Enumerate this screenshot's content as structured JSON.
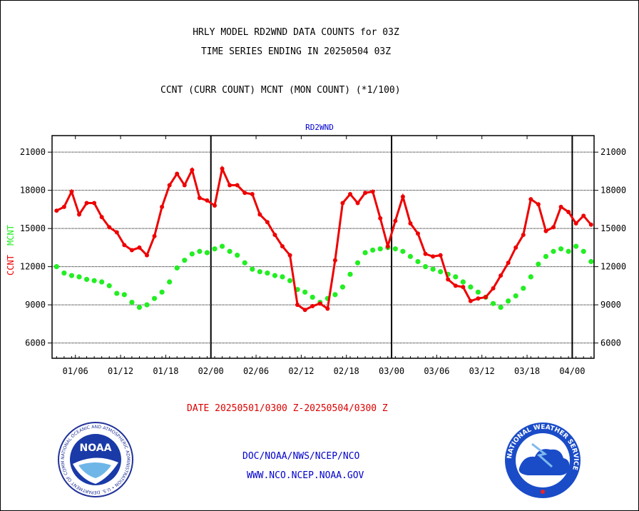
{
  "header": {
    "title_line1": "HRLY MODEL RD2WND DATA COUNTS for 03Z",
    "title_line2": "TIME SERIES ENDING IN 20250504 03Z",
    "subtitle": "CCNT (CURR COUNT) MCNT (MON COUNT) (*1/100)"
  },
  "footer": {
    "date_range": "DATE 20250501/0300 Z-20250504/0300 Z",
    "link_doc": "DOC/NOAA/NWS/NCEP/NCO",
    "link_www": "WWW.NCO.NCEP.NOAA.GOV"
  },
  "logos": {
    "noaa_text": "NOAA",
    "noaa_ring": "NATIONAL OCEANIC AND ATMOSPHERIC ADMINISTRATION • U.S. DEPARTMENT OF COMMERCE",
    "nws_ring": "NATIONAL WEATHER SERVICE"
  },
  "colors": {
    "ccnt": "#ee0000",
    "mcnt": "#22ee22",
    "label_blue": "#0000cc",
    "grid": "#000000"
  },
  "chart_data": {
    "type": "line",
    "title": "RD2WND",
    "ylabel_series": [
      "CCNT",
      "MCNT"
    ],
    "ylim": [
      4800,
      22300
    ],
    "yticks": [
      6000,
      9000,
      12000,
      15000,
      18000,
      21000
    ],
    "ytick_labels": [
      "6000",
      "9000",
      "12000",
      "15000",
      "18000",
      "21000"
    ],
    "xlim": [
      -0.6,
      71.4
    ],
    "xticks": [
      2.5,
      8.5,
      14.5,
      20.5,
      26.5,
      32.5,
      38.5,
      44.5,
      50.5,
      56.5,
      62.5,
      68.5
    ],
    "xtick_labels": [
      "01/06",
      "01/12",
      "01/18",
      "02/00",
      "02/06",
      "02/12",
      "02/18",
      "03/00",
      "03/06",
      "03/12",
      "03/18",
      "04/00"
    ],
    "day_boundaries": [
      20.5,
      44.5,
      68.5
    ],
    "grid": true,
    "series": [
      {
        "name": "CCNT",
        "values": [
          16400,
          16700,
          17900,
          16100,
          17000,
          17000,
          15900,
          15100,
          14700,
          13700,
          13300,
          13500,
          12900,
          14400,
          16700,
          18400,
          19300,
          18400,
          19600,
          17400,
          17200,
          16800,
          19700,
          18400,
          18400,
          17800,
          17700,
          16100,
          15500,
          14500,
          13600,
          12900,
          9000,
          8600,
          8900,
          9100,
          8700,
          12500,
          17000,
          17700,
          17000,
          17800,
          17900,
          15800,
          13600,
          15600,
          17500,
          15400,
          14600,
          13000,
          12800,
          12900,
          11000,
          10500,
          10400,
          9300,
          9500,
          9600,
          10300,
          11300,
          12300,
          13500,
          14500,
          17300,
          16900,
          14800,
          15100,
          16700,
          16300,
          15400,
          16000,
          15300
        ]
      },
      {
        "name": "MCNT",
        "values": [
          12000,
          11500,
          11300,
          11200,
          11000,
          10900,
          10800,
          10500,
          9900,
          9800,
          9200,
          8800,
          9000,
          9500,
          10000,
          10800,
          11900,
          12500,
          13000,
          13200,
          13100,
          13400,
          13600,
          13200,
          12900,
          12300,
          11800,
          11600,
          11500,
          11300,
          11200,
          10900,
          10200,
          10000,
          9600,
          9200,
          9500,
          9800,
          10400,
          11400,
          12300,
          13100,
          13300,
          13400,
          13500,
          13400,
          13200,
          12800,
          12400,
          12000,
          11800,
          11600,
          11400,
          11200,
          10800,
          10400,
          10000,
          9600,
          9100,
          8800,
          9300,
          9700,
          10300,
          11200,
          12200,
          12800,
          13200,
          13400,
          13200,
          13600,
          13200,
          12400
        ]
      }
    ]
  }
}
